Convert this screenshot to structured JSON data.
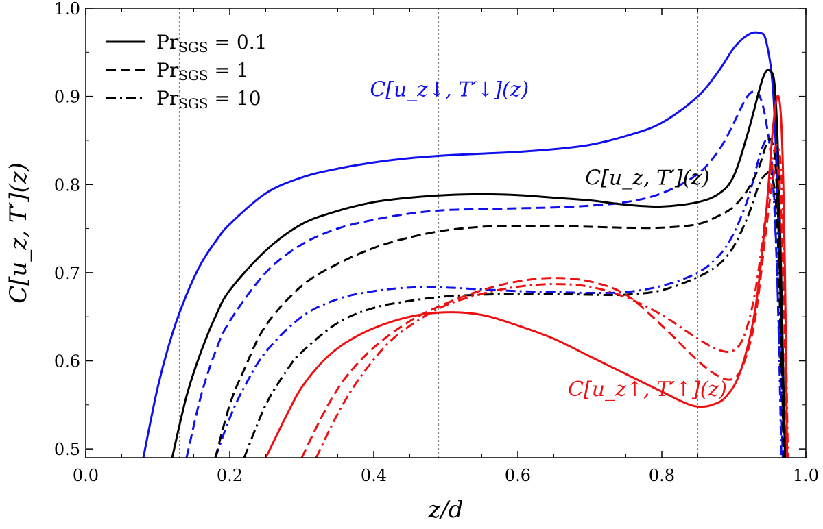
{
  "chart_data": {
    "type": "line",
    "xlabel": "z/d",
    "ylabel": "C[u_z, T′](z)",
    "xlim": [
      0.0,
      1.0
    ],
    "ylim": [
      0.49,
      1.0
    ],
    "xticks": [
      "0.0",
      "0.2",
      "0.4",
      "0.6",
      "0.8",
      "1.0"
    ],
    "yticks": [
      "0.5",
      "0.6",
      "0.7",
      "0.8",
      "0.9",
      "1.0"
    ],
    "vlines": [
      0.13,
      0.49,
      0.85
    ],
    "grid": false,
    "legend": {
      "placement": "top-left",
      "entries": [
        {
          "style": "solid",
          "prefix": "Pr",
          "sub": "SGS",
          "suffix": " = 0.1"
        },
        {
          "style": "dashed",
          "prefix": "Pr",
          "sub": "SGS",
          "suffix": " = 1"
        },
        {
          "style": "dashdot",
          "prefix": "Pr",
          "sub": "SGS",
          "suffix": " = 10"
        }
      ]
    },
    "annotations": [
      {
        "id": "down",
        "color": "#1010ee",
        "text": "C[u_z↓, T′↓](z)",
        "x": 0.505,
        "y": 0.9
      },
      {
        "id": "total",
        "color": "#000000",
        "text": "C[u_z, T′](z)",
        "x": 0.78,
        "y": 0.8
      },
      {
        "id": "up",
        "color": "#ee1010",
        "text": "C[u_z↑, T′↑](z)",
        "x": 0.78,
        "y": 0.56
      }
    ],
    "series": [
      {
        "name": "downflow Pr=0.1",
        "color": "#1010ee",
        "style": "solid",
        "x": [
          0.08,
          0.1,
          0.12,
          0.14,
          0.16,
          0.18,
          0.2,
          0.25,
          0.3,
          0.35,
          0.4,
          0.45,
          0.5,
          0.55,
          0.6,
          0.65,
          0.7,
          0.75,
          0.8,
          0.85,
          0.88,
          0.9,
          0.92,
          0.935,
          0.945,
          0.955,
          0.962,
          0.967,
          0.972
        ],
        "y": [
          0.49,
          0.57,
          0.63,
          0.675,
          0.71,
          0.735,
          0.755,
          0.79,
          0.808,
          0.818,
          0.825,
          0.83,
          0.833,
          0.835,
          0.837,
          0.84,
          0.845,
          0.855,
          0.87,
          0.9,
          0.93,
          0.955,
          0.97,
          0.972,
          0.962,
          0.9,
          0.75,
          0.6,
          0.49
        ]
      },
      {
        "name": "downflow Pr=1",
        "color": "#1010ee",
        "style": "dashed",
        "x": [
          0.14,
          0.16,
          0.18,
          0.2,
          0.25,
          0.3,
          0.35,
          0.4,
          0.45,
          0.5,
          0.55,
          0.6,
          0.65,
          0.7,
          0.75,
          0.8,
          0.85,
          0.88,
          0.9,
          0.915,
          0.925,
          0.935,
          0.945,
          0.955,
          0.962,
          0.968
        ],
        "y": [
          0.49,
          0.56,
          0.61,
          0.645,
          0.7,
          0.732,
          0.75,
          0.76,
          0.767,
          0.771,
          0.772,
          0.773,
          0.774,
          0.776,
          0.78,
          0.79,
          0.812,
          0.84,
          0.87,
          0.895,
          0.905,
          0.902,
          0.87,
          0.8,
          0.65,
          0.49
        ]
      },
      {
        "name": "downflow Pr=10",
        "color": "#1010ee",
        "style": "dashdot",
        "x": [
          0.18,
          0.2,
          0.22,
          0.25,
          0.3,
          0.35,
          0.4,
          0.45,
          0.5,
          0.55,
          0.6,
          0.65,
          0.7,
          0.75,
          0.8,
          0.85,
          0.88,
          0.9,
          0.92,
          0.935,
          0.945,
          0.952,
          0.96,
          0.966
        ],
        "y": [
          0.49,
          0.535,
          0.57,
          0.61,
          0.65,
          0.67,
          0.679,
          0.683,
          0.683,
          0.681,
          0.679,
          0.678,
          0.677,
          0.678,
          0.685,
          0.7,
          0.72,
          0.745,
          0.785,
          0.83,
          0.85,
          0.83,
          0.7,
          0.49
        ]
      },
      {
        "name": "total Pr=0.1",
        "color": "#000000",
        "style": "solid",
        "x": [
          0.12,
          0.14,
          0.16,
          0.18,
          0.2,
          0.25,
          0.3,
          0.35,
          0.4,
          0.45,
          0.5,
          0.55,
          0.6,
          0.65,
          0.7,
          0.75,
          0.8,
          0.85,
          0.88,
          0.9,
          0.92,
          0.94,
          0.95,
          0.957,
          0.962,
          0.967,
          0.971
        ],
        "y": [
          0.49,
          0.56,
          0.61,
          0.65,
          0.68,
          0.725,
          0.755,
          0.77,
          0.78,
          0.785,
          0.788,
          0.789,
          0.788,
          0.785,
          0.782,
          0.777,
          0.775,
          0.78,
          0.79,
          0.81,
          0.86,
          0.92,
          0.929,
          0.91,
          0.82,
          0.65,
          0.49
        ]
      },
      {
        "name": "total Pr=1",
        "color": "#000000",
        "style": "dashed",
        "x": [
          0.18,
          0.2,
          0.22,
          0.25,
          0.3,
          0.35,
          0.4,
          0.45,
          0.5,
          0.55,
          0.6,
          0.65,
          0.7,
          0.75,
          0.8,
          0.85,
          0.88,
          0.9,
          0.92,
          0.935,
          0.945,
          0.952,
          0.958,
          0.964,
          0.969
        ],
        "y": [
          0.49,
          0.55,
          0.59,
          0.64,
          0.685,
          0.71,
          0.728,
          0.74,
          0.748,
          0.752,
          0.753,
          0.753,
          0.752,
          0.751,
          0.751,
          0.755,
          0.765,
          0.775,
          0.795,
          0.82,
          0.845,
          0.85,
          0.82,
          0.7,
          0.49
        ]
      },
      {
        "name": "total Pr=10",
        "color": "#000000",
        "style": "dashdot",
        "x": [
          0.22,
          0.25,
          0.28,
          0.3,
          0.35,
          0.4,
          0.45,
          0.5,
          0.55,
          0.6,
          0.65,
          0.7,
          0.75,
          0.8,
          0.85,
          0.88,
          0.9,
          0.92,
          0.935,
          0.945,
          0.953,
          0.96,
          0.966,
          0.97
        ],
        "y": [
          0.49,
          0.55,
          0.59,
          0.61,
          0.643,
          0.66,
          0.668,
          0.673,
          0.675,
          0.676,
          0.676,
          0.675,
          0.675,
          0.68,
          0.695,
          0.71,
          0.73,
          0.765,
          0.8,
          0.812,
          0.81,
          0.76,
          0.6,
          0.49
        ]
      },
      {
        "name": "upflow Pr=0.1",
        "color": "#ee1010",
        "style": "solid",
        "x": [
          0.25,
          0.28,
          0.3,
          0.33,
          0.36,
          0.4,
          0.45,
          0.5,
          0.55,
          0.6,
          0.65,
          0.7,
          0.75,
          0.8,
          0.83,
          0.85,
          0.87,
          0.89,
          0.91,
          0.93,
          0.945,
          0.955,
          0.962,
          0.967,
          0.971,
          0.974
        ],
        "y": [
          0.49,
          0.54,
          0.57,
          0.6,
          0.62,
          0.637,
          0.65,
          0.655,
          0.652,
          0.64,
          0.625,
          0.605,
          0.585,
          0.565,
          0.553,
          0.548,
          0.55,
          0.56,
          0.59,
          0.66,
          0.77,
          0.87,
          0.9,
          0.85,
          0.7,
          0.49
        ]
      },
      {
        "name": "upflow Pr=1",
        "color": "#ee1010",
        "style": "dashed",
        "x": [
          0.3,
          0.33,
          0.36,
          0.4,
          0.45,
          0.5,
          0.55,
          0.6,
          0.65,
          0.7,
          0.75,
          0.8,
          0.85,
          0.88,
          0.9,
          0.915,
          0.93,
          0.945,
          0.953,
          0.96,
          0.965,
          0.97,
          0.974
        ],
        "y": [
          0.49,
          0.54,
          0.58,
          0.615,
          0.645,
          0.665,
          0.68,
          0.69,
          0.694,
          0.69,
          0.675,
          0.64,
          0.6,
          0.582,
          0.58,
          0.6,
          0.65,
          0.75,
          0.8,
          0.82,
          0.78,
          0.65,
          0.49
        ]
      },
      {
        "name": "upflow Pr=10",
        "color": "#ee1010",
        "style": "dashdot",
        "x": [
          0.32,
          0.35,
          0.38,
          0.42,
          0.46,
          0.5,
          0.55,
          0.6,
          0.65,
          0.7,
          0.75,
          0.8,
          0.85,
          0.88,
          0.9,
          0.915,
          0.93,
          0.945,
          0.953,
          0.96,
          0.966,
          0.971,
          0.975
        ],
        "y": [
          0.49,
          0.54,
          0.58,
          0.62,
          0.645,
          0.663,
          0.676,
          0.684,
          0.687,
          0.684,
          0.672,
          0.652,
          0.625,
          0.612,
          0.612,
          0.63,
          0.68,
          0.77,
          0.82,
          0.845,
          0.81,
          0.68,
          0.49
        ]
      }
    ]
  }
}
